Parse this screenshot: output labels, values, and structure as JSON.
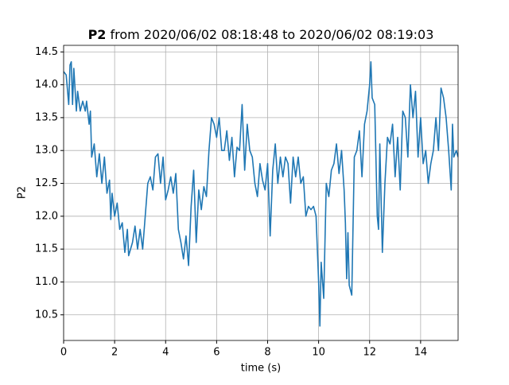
{
  "chart_data": {
    "type": "line",
    "title": [
      "P2",
      "from 2020/06/02 08:18:48 to 2020/06/02 08:19:03"
    ],
    "xlabel": "time (s)",
    "ylabel": "P2",
    "xlim": [
      0,
      15.47
    ],
    "ylim": [
      10.11,
      14.6
    ],
    "xticks": [
      0,
      2,
      4,
      6,
      8,
      10,
      12,
      14
    ],
    "yticks": [
      10.5,
      {
        "value": 11,
        "label": "11.0"
      },
      11.5,
      {
        "value": 12,
        "label": "12.0"
      },
      12.5,
      {
        "value": 13,
        "label": "13.0"
      },
      13.5,
      {
        "value": 14,
        "label": "14.0"
      },
      14.5
    ],
    "grid": true,
    "series": [
      {
        "color": "#1f77b4",
        "x": [
          0.0,
          0.1,
          0.2,
          0.25,
          0.3,
          0.35,
          0.4,
          0.5,
          0.55,
          0.65,
          0.75,
          0.85,
          0.9,
          1.0,
          1.05,
          1.1,
          1.2,
          1.3,
          1.4,
          1.5,
          1.6,
          1.7,
          1.8,
          1.85,
          1.9,
          2.0,
          2.1,
          2.2,
          2.3,
          2.4,
          2.5,
          2.55,
          2.7,
          2.8,
          2.9,
          3.0,
          3.1,
          3.2,
          3.3,
          3.4,
          3.5,
          3.6,
          3.7,
          3.8,
          3.9,
          4.0,
          4.1,
          4.2,
          4.3,
          4.4,
          4.5,
          4.6,
          4.7,
          4.8,
          4.9,
          5.0,
          5.1,
          5.2,
          5.3,
          5.4,
          5.5,
          5.6,
          5.7,
          5.8,
          5.9,
          6.0,
          6.1,
          6.2,
          6.3,
          6.4,
          6.5,
          6.6,
          6.7,
          6.8,
          6.9,
          7.0,
          7.1,
          7.2,
          7.3,
          7.4,
          7.5,
          7.6,
          7.7,
          7.8,
          7.9,
          8.0,
          8.1,
          8.2,
          8.3,
          8.4,
          8.5,
          8.6,
          8.7,
          8.8,
          8.9,
          9.0,
          9.1,
          9.2,
          9.3,
          9.4,
          9.5,
          9.6,
          9.7,
          9.8,
          9.9,
          10.0,
          10.05,
          10.1,
          10.2,
          10.3,
          10.4,
          10.5,
          10.6,
          10.7,
          10.8,
          10.9,
          11.0,
          11.05,
          11.1,
          11.15,
          11.2,
          11.3,
          11.4,
          11.5,
          11.6,
          11.7,
          11.8,
          11.9,
          12.0,
          12.05,
          12.1,
          12.2,
          12.3,
          12.35,
          12.4,
          12.5,
          12.6,
          12.7,
          12.8,
          12.9,
          13.0,
          13.1,
          13.2,
          13.3,
          13.4,
          13.5,
          13.6,
          13.7,
          13.8,
          13.9,
          14.0,
          14.1,
          14.2,
          14.3,
          14.4,
          14.5,
          14.6,
          14.7,
          14.8,
          14.9,
          15.0,
          15.1,
          15.2,
          15.25,
          15.3,
          15.4,
          15.47
        ],
        "values": [
          14.2,
          14.15,
          13.7,
          14.3,
          14.35,
          13.7,
          14.25,
          13.6,
          13.9,
          13.6,
          13.75,
          13.6,
          13.75,
          13.4,
          13.6,
          12.9,
          13.1,
          12.6,
          12.95,
          12.5,
          12.9,
          12.35,
          12.55,
          11.95,
          12.35,
          12.0,
          12.2,
          11.8,
          11.9,
          11.45,
          11.8,
          11.4,
          11.6,
          11.85,
          11.5,
          11.8,
          11.5,
          12.0,
          12.5,
          12.6,
          12.4,
          12.9,
          12.95,
          12.5,
          12.9,
          12.25,
          12.4,
          12.6,
          12.35,
          12.65,
          11.8,
          11.6,
          11.35,
          11.7,
          11.25,
          12.15,
          12.7,
          11.6,
          12.4,
          12.1,
          12.45,
          12.3,
          13.0,
          13.5,
          13.4,
          13.2,
          13.5,
          13.0,
          13.0,
          13.3,
          12.85,
          13.2,
          12.6,
          13.05,
          13.0,
          13.7,
          12.7,
          13.4,
          13.0,
          12.9,
          12.5,
          12.3,
          12.8,
          12.55,
          12.4,
          12.8,
          11.7,
          12.7,
          13.1,
          12.5,
          12.9,
          12.6,
          12.9,
          12.8,
          12.2,
          12.9,
          12.6,
          12.9,
          12.5,
          12.6,
          12.0,
          12.15,
          12.1,
          12.15,
          12.0,
          11.0,
          10.33,
          11.3,
          10.75,
          12.5,
          12.3,
          12.7,
          12.8,
          13.1,
          12.65,
          13.0,
          12.4,
          11.9,
          11.05,
          11.75,
          10.95,
          10.8,
          12.9,
          13.0,
          13.3,
          12.6,
          13.4,
          13.6,
          14.0,
          14.35,
          13.8,
          13.7,
          12.0,
          11.8,
          13.1,
          11.45,
          12.5,
          13.2,
          13.1,
          13.4,
          12.6,
          13.2,
          12.4,
          13.6,
          13.5,
          12.9,
          14.0,
          13.5,
          13.9,
          12.9,
          13.5,
          12.8,
          13.0,
          12.5,
          12.8,
          13.0,
          13.5,
          13.0,
          13.95,
          13.8,
          13.5,
          13.0,
          12.4,
          13.4,
          12.9,
          13.0,
          12.9
        ]
      }
    ]
  }
}
